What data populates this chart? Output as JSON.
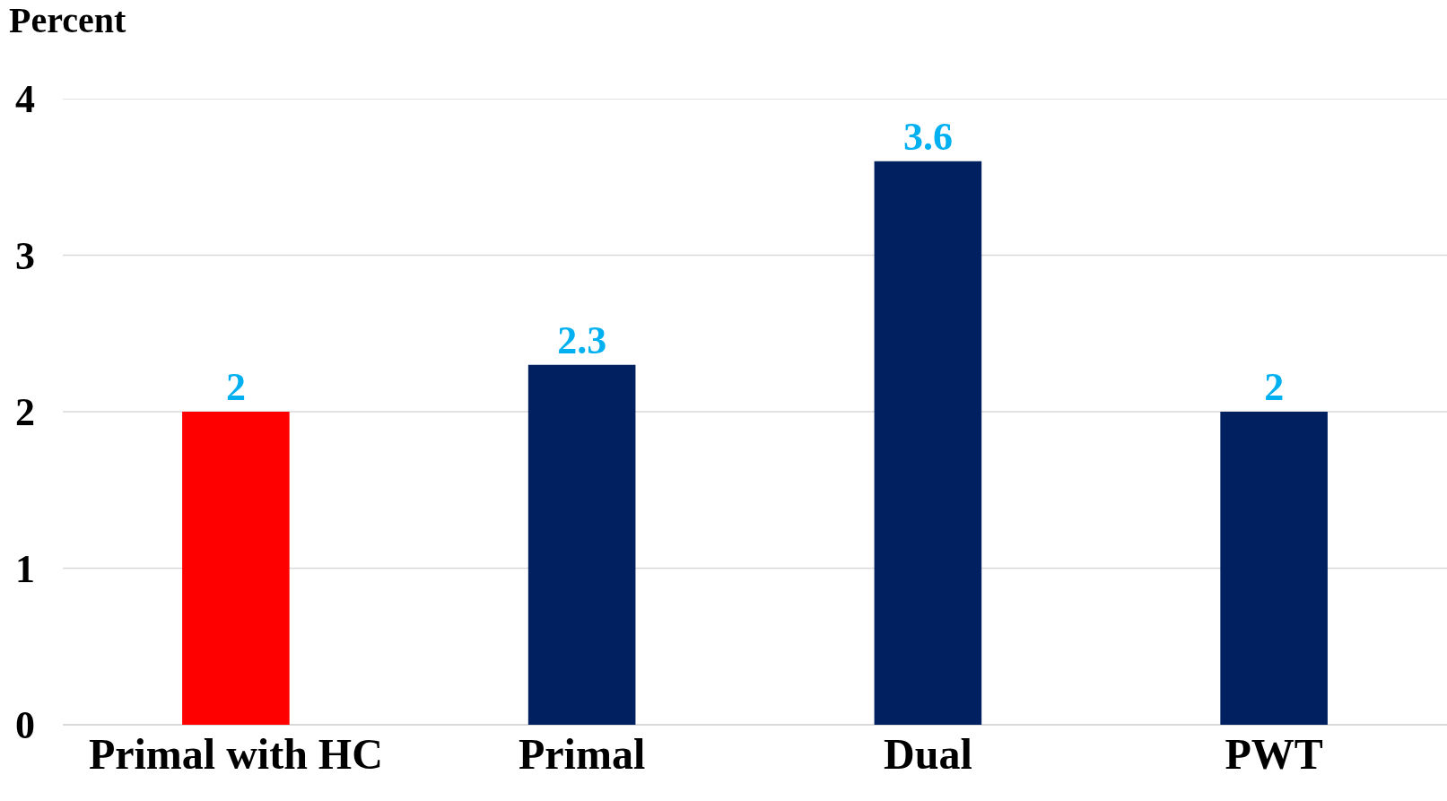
{
  "chart_data": {
    "type": "bar",
    "ylabel": "Percent",
    "categories": [
      "Primal with HC",
      "Primal",
      "Dual",
      "PWT"
    ],
    "values": [
      2,
      2.3,
      3.6,
      2
    ],
    "colors": [
      "#ff0000",
      "#002060",
      "#002060",
      "#002060"
    ],
    "ylim": [
      0,
      4
    ],
    "yticks": [
      0,
      1,
      2,
      3,
      4
    ],
    "grid": "y",
    "data_labels": true
  }
}
